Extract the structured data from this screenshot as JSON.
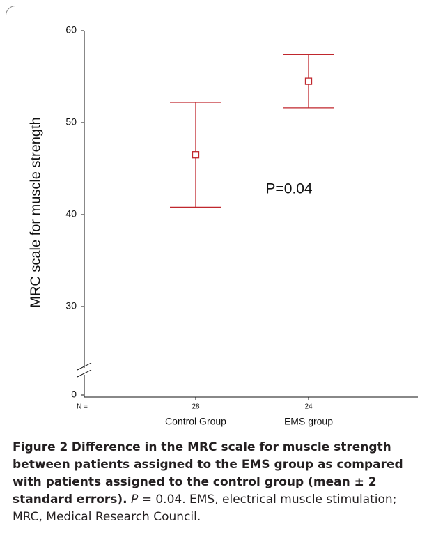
{
  "chart_data": {
    "type": "errorbar",
    "ylabel": "MRC scale for muscle strength",
    "categories": [
      "Control Group",
      "EMS group"
    ],
    "n_label": "N =",
    "n": [
      28,
      24
    ],
    "series": [
      {
        "color": "#c0272d",
        "values": [
          46.5,
          54.5
        ],
        "errors": [
          5.7,
          2.9
        ]
      }
    ],
    "ylim": [
      0,
      60
    ],
    "axis_break": [
      0,
      25
    ],
    "yticks": [
      0,
      30,
      40,
      50,
      60
    ],
    "annotation": "P=0.04"
  },
  "caption": {
    "label": "Figure 2",
    "title": "Difference in the MRC scale for muscle strength between patients assigned to the EMS group as compared with patients assigned to the control group (mean ± 2 standard errors).",
    "p_symbol": "P",
    "text": "= 0.04. EMS, electrical muscle stimulation; MRC, Medical Research Council."
  }
}
